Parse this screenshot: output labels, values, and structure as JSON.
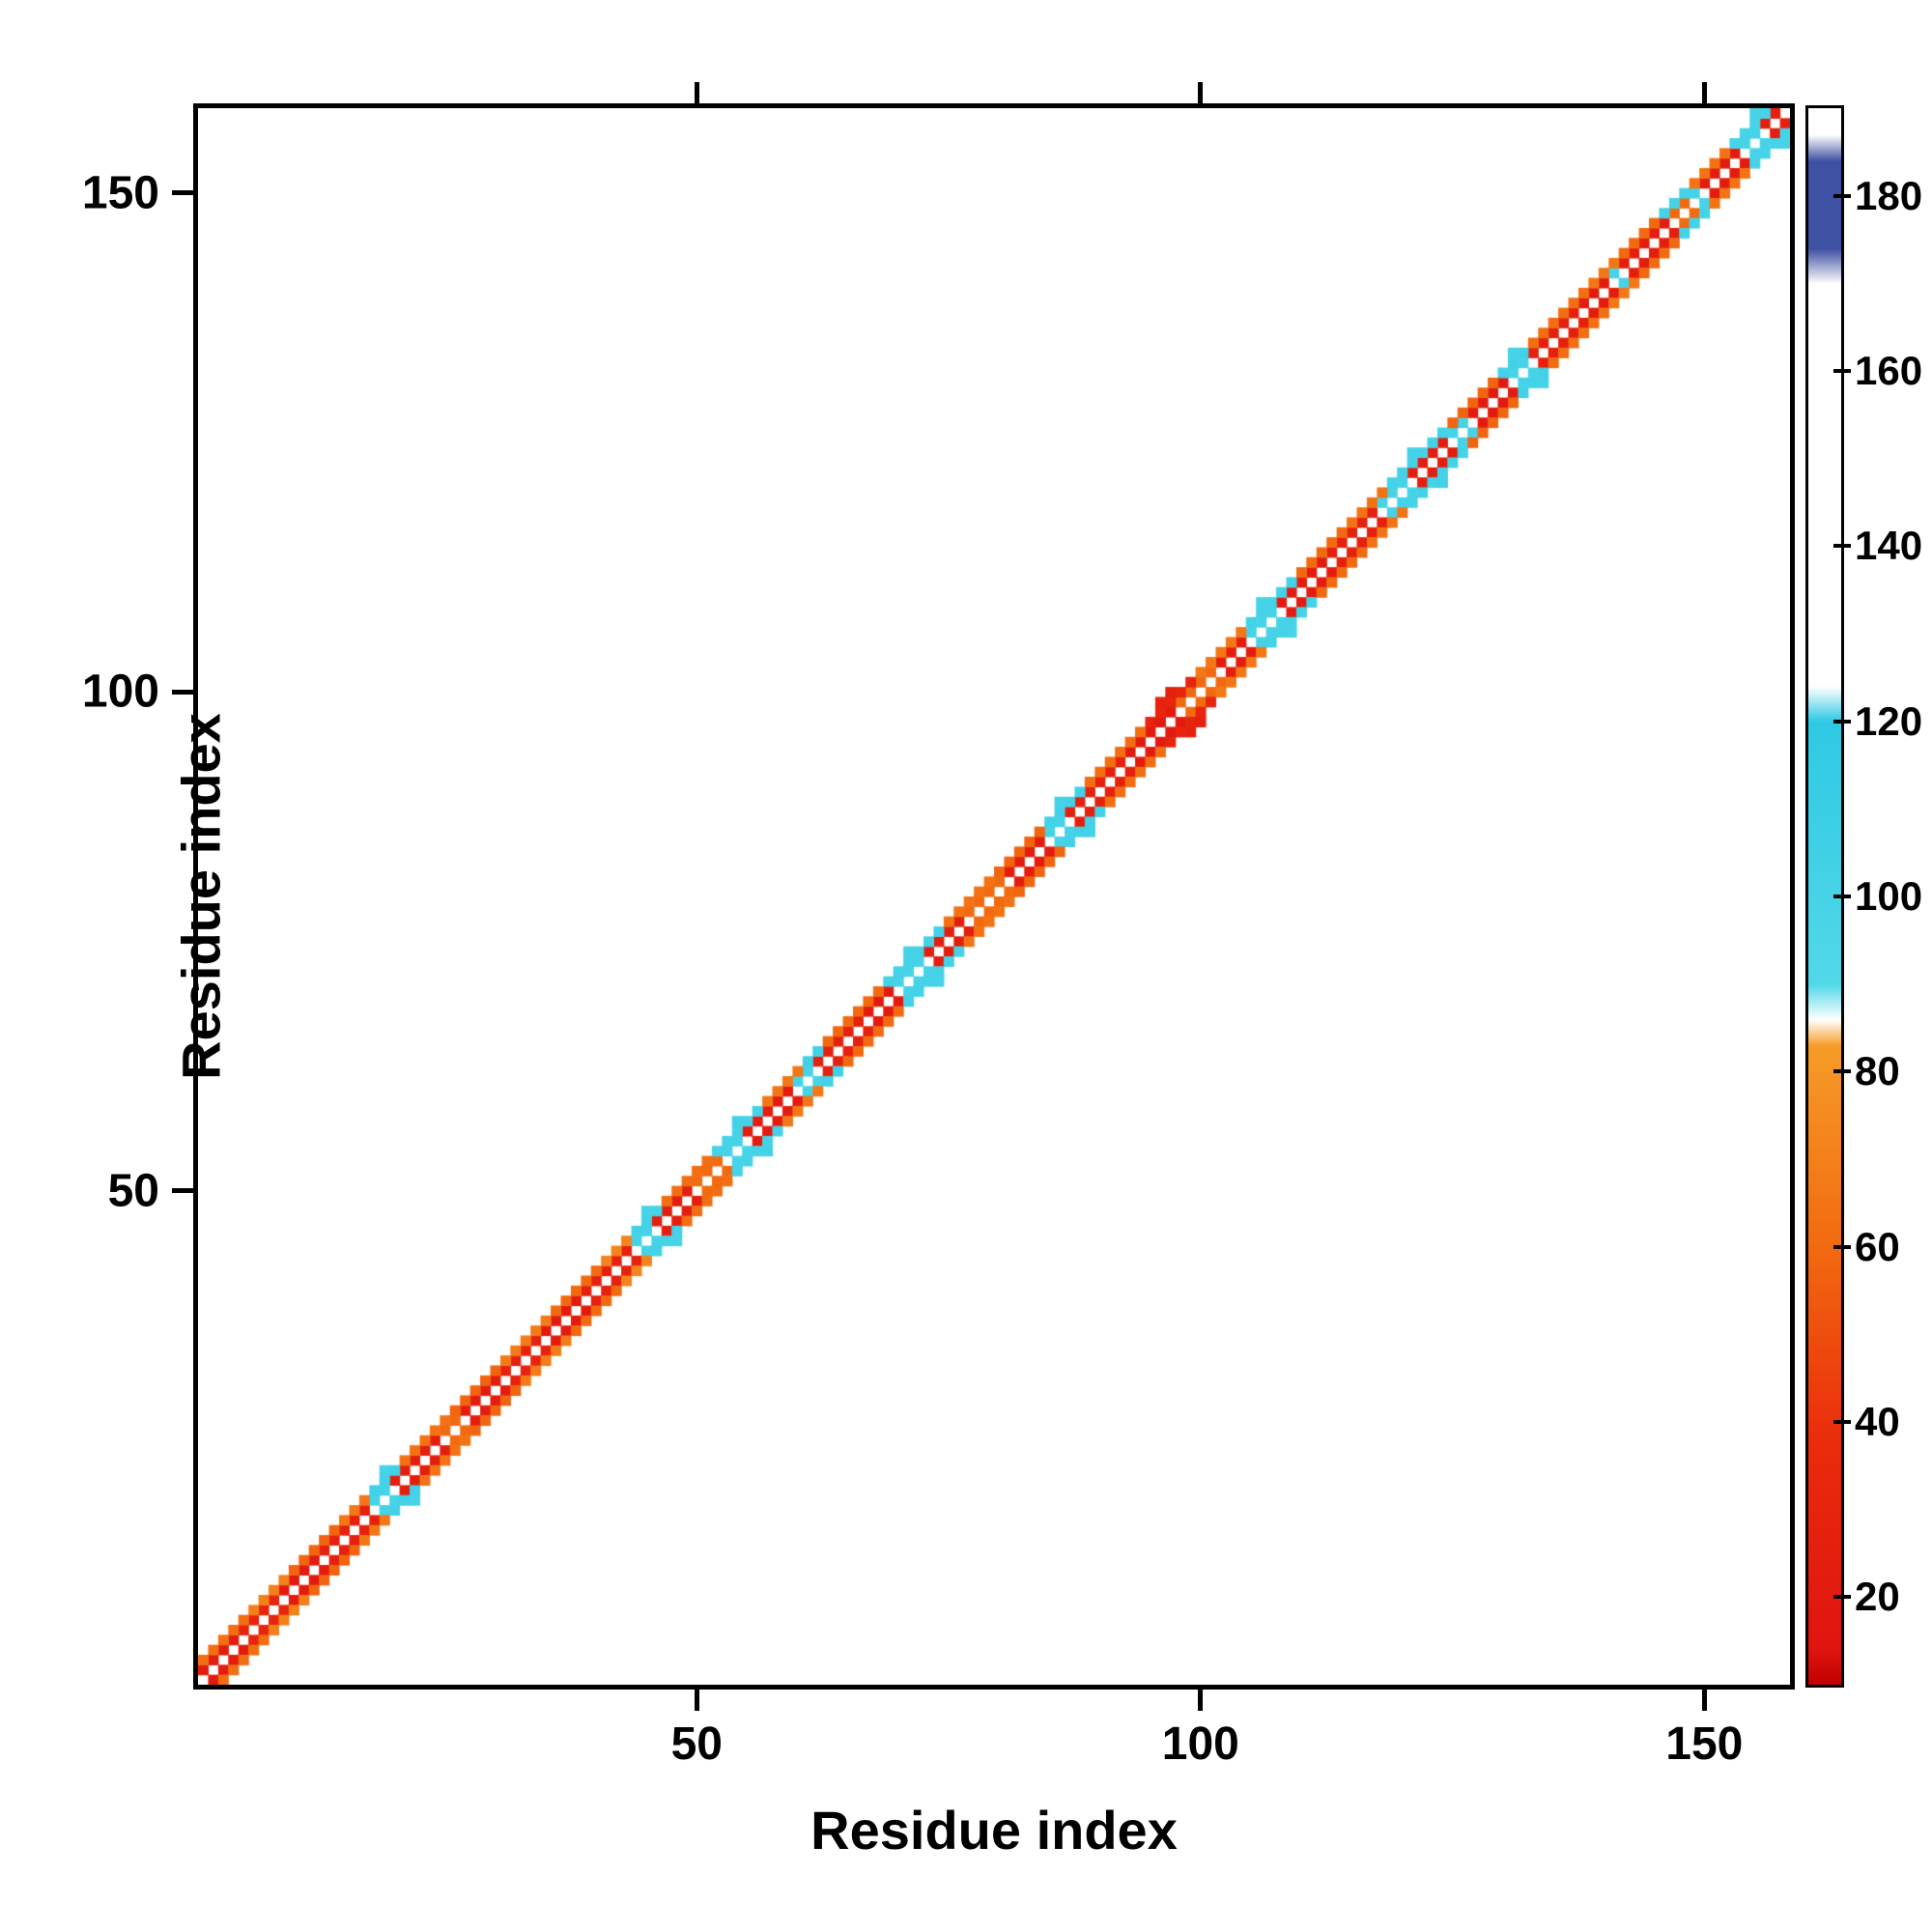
{
  "figure": {
    "background": "#ffffff",
    "frame_color": "#000000"
  },
  "chart_data": {
    "type": "heatmap",
    "title": "",
    "xlabel": "Residue index",
    "ylabel": "Residue index",
    "n_residues": 158,
    "xlim": [
      1,
      158
    ],
    "ylim": [
      1,
      158
    ],
    "xticks": [
      50,
      100,
      150
    ],
    "yticks": [
      50,
      100,
      150
    ],
    "grid": false,
    "background_value_color": "#ffffff",
    "diagonal_color": "#ffffff",
    "colorbar": {
      "position": "right",
      "range": [
        10,
        190
      ],
      "ticks": [
        20,
        40,
        60,
        80,
        100,
        120,
        140,
        160,
        180
      ],
      "stops": [
        [
          10,
          "#c00000"
        ],
        [
          14,
          "#e01410"
        ],
        [
          38,
          "#ea2c0c"
        ],
        [
          60,
          "#f26a10"
        ],
        [
          83,
          "#f69c28"
        ],
        [
          86,
          "#ffffff"
        ],
        [
          90,
          "#52d8e8"
        ],
        [
          120,
          "#2fc9e4"
        ],
        [
          124,
          "#ffffff"
        ],
        [
          170,
          "#ffffff"
        ],
        [
          174,
          "#3f51a3"
        ],
        [
          184,
          "#3f51a3"
        ],
        [
          187,
          "#ffffff"
        ],
        [
          190,
          "#ffffff"
        ]
      ]
    },
    "band": {
      "description": "Contact-map band along the diagonal; runs give value for symmetric cell pairs (i,i+offset) and (i+offset,i)",
      "off1_runs": [
        {
          "from": 1,
          "to": 4,
          "value": 22
        },
        {
          "from": 5,
          "to": 8,
          "value": 30
        },
        {
          "from": 9,
          "to": 12,
          "value": 20
        },
        {
          "from": 13,
          "to": 17,
          "value": 26
        },
        {
          "from": 18,
          "to": 19,
          "value": 100
        },
        {
          "from": 20,
          "to": 24,
          "value": 24
        },
        {
          "from": 25,
          "to": 26,
          "value": 60
        },
        {
          "from": 27,
          "to": 30,
          "value": 22
        },
        {
          "from": 31,
          "to": 34,
          "value": 28
        },
        {
          "from": 35,
          "to": 38,
          "value": 20
        },
        {
          "from": 39,
          "to": 43,
          "value": 26
        },
        {
          "from": 44,
          "to": 45,
          "value": 100
        },
        {
          "from": 46,
          "to": 49,
          "value": 24
        },
        {
          "from": 50,
          "to": 52,
          "value": 60
        },
        {
          "from": 53,
          "to": 54,
          "value": 100
        },
        {
          "from": 55,
          "to": 59,
          "value": 22
        },
        {
          "from": 60,
          "to": 61,
          "value": 100
        },
        {
          "from": 62,
          "to": 66,
          "value": 26
        },
        {
          "from": 67,
          "to": 69,
          "value": 20
        },
        {
          "from": 70,
          "to": 72,
          "value": 100
        },
        {
          "from": 73,
          "to": 76,
          "value": 24
        },
        {
          "from": 77,
          "to": 80,
          "value": 60
        },
        {
          "from": 81,
          "to": 84,
          "value": 22
        },
        {
          "from": 85,
          "to": 86,
          "value": 100
        },
        {
          "from": 87,
          "to": 92,
          "value": 26
        },
        {
          "from": 93,
          "to": 97,
          "value": 20
        },
        {
          "from": 98,
          "to": 101,
          "value": 60
        },
        {
          "from": 102,
          "to": 104,
          "value": 24
        },
        {
          "from": 105,
          "to": 107,
          "value": 100
        },
        {
          "from": 108,
          "to": 112,
          "value": 22
        },
        {
          "from": 113,
          "to": 117,
          "value": 26
        },
        {
          "from": 118,
          "to": 120,
          "value": 100
        },
        {
          "from": 121,
          "to": 124,
          "value": 24
        },
        {
          "from": 125,
          "to": 126,
          "value": 100
        },
        {
          "from": 127,
          "to": 130,
          "value": 20
        },
        {
          "from": 131,
          "to": 132,
          "value": 100
        },
        {
          "from": 133,
          "to": 137,
          "value": 26
        },
        {
          "from": 138,
          "to": 140,
          "value": 22
        },
        {
          "from": 141,
          "to": 141,
          "value": 100
        },
        {
          "from": 142,
          "to": 146,
          "value": 24
        },
        {
          "from": 147,
          "to": 148,
          "value": 60
        },
        {
          "from": 149,
          "to": 149,
          "value": 100
        },
        {
          "from": 150,
          "to": 153,
          "value": 22
        },
        {
          "from": 154,
          "to": 155,
          "value": 100
        },
        {
          "from": 156,
          "to": 157,
          "value": 25
        }
      ],
      "off2_runs": [
        {
          "from": 1,
          "to": 5,
          "value": 62
        },
        {
          "from": 6,
          "to": 9,
          "value": 70
        },
        {
          "from": 10,
          "to": 14,
          "value": 58
        },
        {
          "from": 15,
          "to": 17,
          "value": 66
        },
        {
          "from": 18,
          "to": 20,
          "value": 104
        },
        {
          "from": 21,
          "to": 25,
          "value": 64
        },
        {
          "from": 26,
          "to": 30,
          "value": 58
        },
        {
          "from": 31,
          "to": 35,
          "value": 68
        },
        {
          "from": 36,
          "to": 40,
          "value": 60
        },
        {
          "from": 41,
          "to": 43,
          "value": 72
        },
        {
          "from": 44,
          "to": 46,
          "value": 102
        },
        {
          "from": 47,
          "to": 51,
          "value": 62
        },
        {
          "from": 52,
          "to": 56,
          "value": 100
        },
        {
          "from": 57,
          "to": 60,
          "value": 66
        },
        {
          "from": 61,
          "to": 62,
          "value": 104
        },
        {
          "from": 63,
          "to": 68,
          "value": 60
        },
        {
          "from": 69,
          "to": 74,
          "value": 102
        },
        {
          "from": 75,
          "to": 79,
          "value": 64
        },
        {
          "from": 80,
          "to": 84,
          "value": 58
        },
        {
          "from": 85,
          "to": 88,
          "value": 104
        },
        {
          "from": 89,
          "to": 94,
          "value": 62
        },
        {
          "from": 95,
          "to": 99,
          "value": 30
        },
        {
          "from": 100,
          "to": 104,
          "value": 66
        },
        {
          "from": 105,
          "to": 109,
          "value": 102
        },
        {
          "from": 110,
          "to": 114,
          "value": 60
        },
        {
          "from": 115,
          "to": 118,
          "value": 64
        },
        {
          "from": 119,
          "to": 124,
          "value": 102
        },
        {
          "from": 125,
          "to": 129,
          "value": 58
        },
        {
          "from": 130,
          "to": 132,
          "value": 104
        },
        {
          "from": 133,
          "to": 138,
          "value": 62
        },
        {
          "from": 139,
          "to": 141,
          "value": 66
        },
        {
          "from": 142,
          "to": 145,
          "value": 60
        },
        {
          "from": 146,
          "to": 148,
          "value": 102
        },
        {
          "from": 149,
          "to": 152,
          "value": 64
        },
        {
          "from": 153,
          "to": 156,
          "value": 100
        }
      ],
      "off3_cells": [
        {
          "i": 19,
          "value": 100
        },
        {
          "i": 45,
          "value": 100
        },
        {
          "i": 54,
          "value": 104
        },
        {
          "i": 71,
          "value": 100
        },
        {
          "i": 86,
          "value": 102
        },
        {
          "i": 96,
          "value": 28
        },
        {
          "i": 97,
          "value": 26
        },
        {
          "i": 106,
          "value": 100
        },
        {
          "i": 121,
          "value": 104
        },
        {
          "i": 131,
          "value": 100
        },
        {
          "i": 155,
          "value": 100
        }
      ]
    }
  }
}
